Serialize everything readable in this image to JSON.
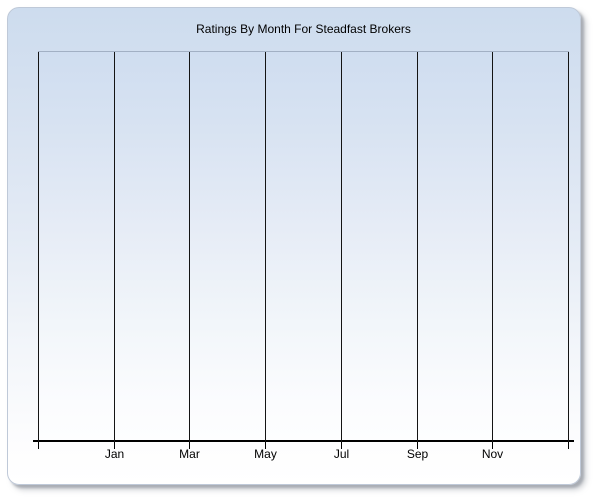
{
  "window": {
    "background_color": "#ffffff",
    "panel_border_color": "#bfc9d8",
    "panel_top_color": "#cddcee",
    "panel_bottom_color": "#ffffff"
  },
  "chart_data": {
    "type": "line",
    "title": "Ratings By Month For Steadfast Brokers",
    "x_tick_labels": [
      "Jan",
      "Mar",
      "May",
      "Jul",
      "Sep",
      "Nov"
    ],
    "x_gridline_count": 8,
    "y_tick_labels": [],
    "series": [],
    "xlabel": "",
    "ylabel": "",
    "grid": "vertical gridlines only",
    "legend_position": "none",
    "style": {
      "plot_top_color": "#cfddf0",
      "plot_bottom_color": "#fdfeff",
      "plot_border_top_color": "#a2b0c4",
      "gridline_color": "#141414",
      "axis_color": "#000000",
      "text_color": "#000000"
    }
  }
}
